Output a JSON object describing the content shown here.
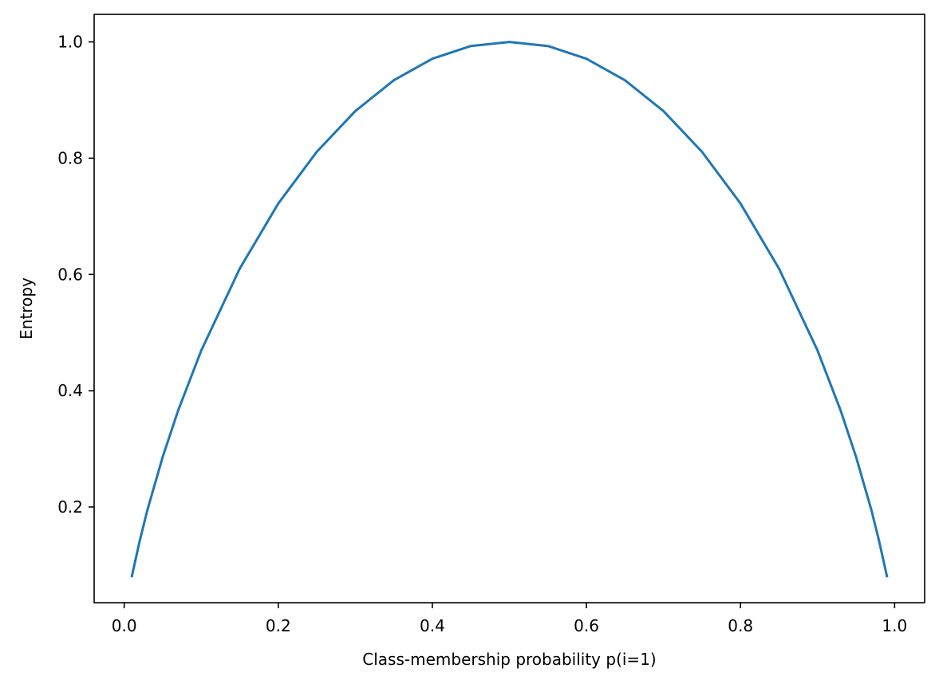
{
  "chart_data": {
    "type": "line",
    "title": "",
    "xlabel": "Class-membership probability p(i=1)",
    "ylabel": "Entropy",
    "xlim": [
      -0.039,
      1.039
    ],
    "ylim": [
      0.0354,
      1.0474
    ],
    "grid": false,
    "xticks": [
      0.0,
      0.2,
      0.4,
      0.6,
      0.8,
      1.0
    ],
    "xtick_labels": [
      "0.0",
      "0.2",
      "0.4",
      "0.6",
      "0.8",
      "1.0"
    ],
    "yticks": [
      0.2,
      0.4,
      0.6,
      0.8,
      1.0
    ],
    "ytick_labels": [
      "0.2",
      "0.4",
      "0.6",
      "0.8",
      "1.0"
    ],
    "series": [
      {
        "color": "#1f77b4",
        "x": [
          0.01,
          0.02,
          0.03,
          0.05,
          0.07,
          0.1,
          0.15,
          0.2,
          0.25,
          0.3,
          0.35,
          0.4,
          0.45,
          0.5,
          0.55,
          0.6,
          0.65,
          0.7,
          0.75,
          0.8,
          0.85,
          0.9,
          0.93,
          0.95,
          0.97,
          0.98,
          0.99
        ],
        "y": [
          0.081,
          0.141,
          0.194,
          0.286,
          0.366,
          0.469,
          0.61,
          0.722,
          0.811,
          0.881,
          0.934,
          0.971,
          0.993,
          1.0,
          0.993,
          0.971,
          0.934,
          0.881,
          0.811,
          0.722,
          0.61,
          0.469,
          0.366,
          0.286,
          0.194,
          0.141,
          0.081
        ]
      }
    ]
  }
}
